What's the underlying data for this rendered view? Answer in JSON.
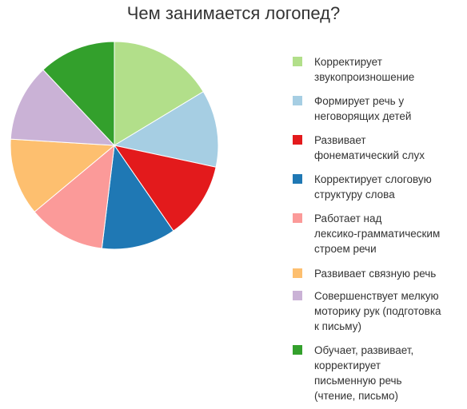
{
  "chart_data": {
    "type": "pie",
    "title": "Чем занимается логопед?",
    "categories": [
      "Корректирует\nзвукопроизношение",
      "Формирует речь у\nнеговорящих детей",
      "Развивает\nфонематический слух",
      "Корректирует слоговую\nструктуру слова",
      "Работает над\nлексико-грамматическим\nстроем речи",
      "Развивает связную речь",
      "Совершенствует мелкую\nмоторику рук (подготовка\nк письму)",
      "Обучает, развивает,\nкорректирует\nписьменную речь\n(чтение, письмо)"
    ],
    "values": [
      17,
      12.5,
      12.5,
      12,
      12.5,
      12.5,
      12.5,
      12.5
    ],
    "colors": [
      "#b2df8a",
      "#a6cee3",
      "#e31a1c",
      "#1f78b4",
      "#fb9a99",
      "#fdbf6f",
      "#cab2d6",
      "#33a02c"
    ],
    "legend_position": "right",
    "grid": false
  }
}
